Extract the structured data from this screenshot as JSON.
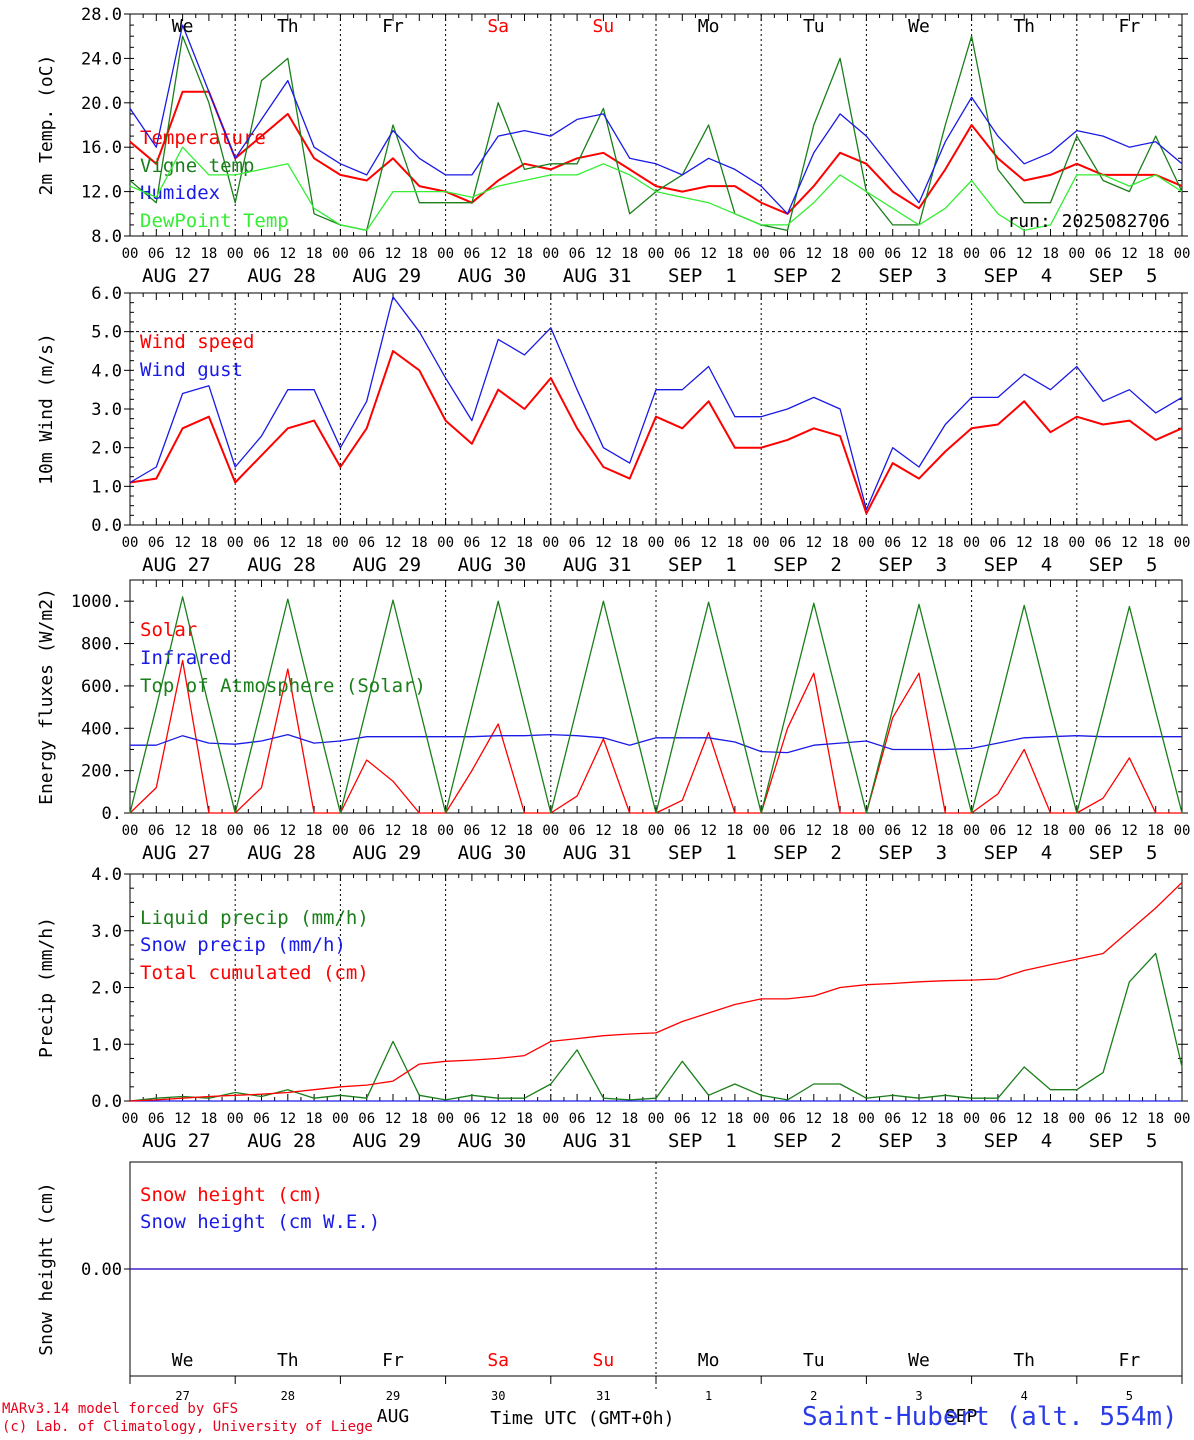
{
  "run_label": "run: 2025082706",
  "hour_labels": [
    "00",
    "06",
    "12",
    "18"
  ],
  "day_dates": [
    "AUG 27",
    "AUG 28",
    "AUG 29",
    "AUG 30",
    "AUG 31",
    "SEP  1",
    "SEP  2",
    "SEP  3",
    "SEP  4",
    "SEP  5"
  ],
  "weekdays": [
    {
      "name": "We",
      "color": "#000000"
    },
    {
      "name": "Th",
      "color": "#000000"
    },
    {
      "name": "Fr",
      "color": "#000000"
    },
    {
      "name": "Sa",
      "color": "#ff0000"
    },
    {
      "name": "Su",
      "color": "#ff0000"
    },
    {
      "name": "Mo",
      "color": "#000000"
    },
    {
      "name": "Tu",
      "color": "#000000"
    },
    {
      "name": "We",
      "color": "#000000"
    },
    {
      "name": "Th",
      "color": "#000000"
    },
    {
      "name": "Fr",
      "color": "#000000"
    }
  ],
  "bottom_day_numbers": [
    "27",
    "28",
    "29",
    "30",
    "31",
    "1",
    "2",
    "3",
    "4",
    "5"
  ],
  "bottom_months": [
    "AUG",
    "SEP"
  ],
  "time_axis_label": "Time UTC (GMT+0h)",
  "credits": [
    "MARv3.14 model forced by GFS",
    "(c) Lab. of Climatology, University of Liege"
  ],
  "station": "Saint-Hubert (alt. 554m)",
  "chart_data": [
    {
      "type": "line",
      "ylabel": "2m Temp. (oC)",
      "ylim": [
        8,
        28
      ],
      "yticks": [
        "8.0",
        "12.0",
        "16.0",
        "20.0",
        "24.0",
        "28.0"
      ],
      "x_days": [
        0,
        0.25,
        0.5,
        0.75,
        1,
        1.25,
        1.5,
        1.75,
        2,
        2.25,
        2.5,
        2.75,
        3,
        3.25,
        3.5,
        3.75,
        4,
        4.25,
        4.5,
        4.75,
        5,
        5.25,
        5.5,
        5.75,
        6,
        6.25,
        6.5,
        6.75,
        7,
        7.25,
        7.5,
        7.75,
        8,
        8.25,
        8.5,
        8.75,
        9,
        9.25,
        9.5,
        9.75,
        10
      ],
      "series": [
        {
          "name": "Temperature",
          "color": "#ff0000",
          "values": [
            16.5,
            14.5,
            21,
            21,
            15,
            17,
            19,
            15,
            13.5,
            13,
            15,
            12.5,
            12,
            11,
            13,
            14.5,
            14,
            15,
            15.5,
            14,
            12.5,
            12,
            12.5,
            12.5,
            11,
            10,
            12.5,
            15.5,
            14.5,
            12,
            10.5,
            14,
            18,
            15,
            13,
            13.5,
            14.5,
            13.5,
            13.5,
            13.5,
            12.5
          ]
        },
        {
          "name": "Vigne temp",
          "color": "#1a7f1a",
          "values": [
            13,
            11,
            26,
            20,
            11,
            22,
            24,
            10,
            9,
            8.5,
            18,
            11,
            11,
            11,
            20,
            14,
            14.5,
            14.5,
            19.5,
            10,
            12,
            13.5,
            18,
            10,
            9,
            8.5,
            18,
            24,
            12,
            9,
            9,
            18,
            26,
            14,
            11,
            11,
            17,
            13,
            12,
            17,
            12
          ]
        },
        {
          "name": "Humidex",
          "color": "#1a1ae6",
          "values": [
            19.5,
            16,
            27,
            21,
            15,
            18.5,
            22,
            16,
            14.5,
            13.5,
            17.5,
            15,
            13.5,
            13.5,
            17,
            17.5,
            17,
            18.5,
            19,
            15,
            14.5,
            13.5,
            15,
            14,
            12.5,
            10,
            15.5,
            19,
            17,
            14,
            11,
            16.5,
            20.5,
            17,
            14.5,
            15.5,
            17.5,
            17,
            16,
            16.5,
            14.5
          ]
        },
        {
          "name": "DewPoint Temp",
          "color": "#33ee33",
          "values": [
            12.5,
            11.5,
            16,
            13.5,
            13.5,
            14,
            14.5,
            10.5,
            9,
            8.5,
            12,
            12,
            12,
            11.5,
            12.5,
            13,
            13.5,
            13.5,
            14.5,
            13.5,
            12,
            11.5,
            11,
            10,
            9,
            9,
            11,
            13.5,
            12,
            10.5,
            9,
            10.5,
            13,
            10,
            8.5,
            9,
            13.5,
            13.5,
            12.5,
            13.5,
            12
          ]
        }
      ]
    },
    {
      "type": "line",
      "ylabel": "10m Wind (m/s)",
      "ylim": [
        0,
        6
      ],
      "yticks": [
        "0.0",
        "1.0",
        "2.0",
        "3.0",
        "4.0",
        "5.0",
        "6.0"
      ],
      "x_days": [
        0,
        0.25,
        0.5,
        0.75,
        1,
        1.25,
        1.5,
        1.75,
        2,
        2.25,
        2.5,
        2.75,
        3,
        3.25,
        3.5,
        3.75,
        4,
        4.25,
        4.5,
        4.75,
        5,
        5.25,
        5.5,
        5.75,
        6,
        6.25,
        6.5,
        6.75,
        7,
        7.25,
        7.5,
        7.75,
        8,
        8.25,
        8.5,
        8.75,
        9,
        9.25,
        9.5,
        9.75,
        10
      ],
      "series": [
        {
          "name": "Wind speed",
          "color": "#ff0000",
          "values": [
            1.1,
            1.2,
            2.5,
            2.8,
            1.1,
            1.8,
            2.5,
            2.7,
            1.5,
            2.5,
            4.5,
            4.0,
            2.7,
            2.1,
            3.5,
            3.0,
            3.8,
            2.5,
            1.5,
            1.2,
            2.8,
            2.5,
            3.2,
            2.0,
            2.0,
            2.2,
            2.5,
            2.3,
            0.3,
            1.6,
            1.2,
            1.9,
            2.5,
            2.6,
            3.2,
            2.4,
            2.8,
            2.6,
            2.7,
            2.2,
            2.5
          ]
        },
        {
          "name": "Wind gust",
          "color": "#1a1ae6",
          "values": [
            1.1,
            1.5,
            3.4,
            3.6,
            1.5,
            2.3,
            3.5,
            3.5,
            2.0,
            3.2,
            5.9,
            5.0,
            3.8,
            2.7,
            4.8,
            4.4,
            5.1,
            3.5,
            2.0,
            1.6,
            3.5,
            3.5,
            4.1,
            2.8,
            2.8,
            3.0,
            3.3,
            3.0,
            0.4,
            2.0,
            1.5,
            2.6,
            3.3,
            3.3,
            3.9,
            3.5,
            4.1,
            3.2,
            3.5,
            2.9,
            3.3
          ]
        }
      ]
    },
    {
      "type": "line",
      "ylabel": "Energy fluxes (W/m2)",
      "ylim": [
        0,
        1100
      ],
      "yticks": [
        "0.",
        "200.",
        "400.",
        "600.",
        "800.",
        "1000."
      ],
      "x_days": [
        0,
        0.25,
        0.5,
        0.75,
        1,
        1.25,
        1.5,
        1.75,
        2,
        2.25,
        2.5,
        2.75,
        3,
        3.25,
        3.5,
        3.75,
        4,
        4.25,
        4.5,
        4.75,
        5,
        5.25,
        5.5,
        5.75,
        6,
        6.25,
        6.5,
        6.75,
        7,
        7.25,
        7.5,
        7.75,
        8,
        8.25,
        8.5,
        8.75,
        9,
        9.25,
        9.5,
        9.75,
        10
      ],
      "series": [
        {
          "name": "Solar",
          "color": "#ff0000",
          "values": [
            0,
            120,
            720,
            0,
            0,
            120,
            680,
            0,
            0,
            250,
            150,
            0,
            0,
            200,
            420,
            0,
            0,
            80,
            350,
            0,
            0,
            60,
            380,
            0,
            0,
            400,
            660,
            0,
            0,
            450,
            660,
            0,
            0,
            90,
            300,
            0,
            0,
            70,
            260,
            0,
            0
          ]
        },
        {
          "name": "Infrared",
          "color": "#1a1ae6",
          "values": [
            320,
            320,
            365,
            330,
            325,
            340,
            370,
            330,
            340,
            360,
            360,
            360,
            360,
            360,
            365,
            365,
            370,
            365,
            355,
            320,
            355,
            355,
            355,
            335,
            290,
            285,
            320,
            330,
            340,
            300,
            300,
            300,
            305,
            330,
            355,
            360,
            365,
            360,
            360,
            360,
            360
          ]
        },
        {
          "name": "Top of Atmosphere (Solar)",
          "color": "#1a7f1a",
          "values": [
            0,
            500,
            1020,
            500,
            0,
            500,
            1010,
            500,
            0,
            500,
            1005,
            500,
            0,
            500,
            1000,
            500,
            0,
            500,
            1000,
            500,
            0,
            500,
            995,
            500,
            0,
            495,
            990,
            495,
            0,
            490,
            985,
            490,
            0,
            485,
            980,
            485,
            0,
            480,
            975,
            480,
            0
          ]
        }
      ]
    },
    {
      "type": "line",
      "ylabel": "Precip (mm/h)",
      "ylim": [
        0,
        4
      ],
      "yticks": [
        "0.0",
        "1.0",
        "2.0",
        "3.0",
        "4.0"
      ],
      "x_days": [
        0,
        0.25,
        0.5,
        0.75,
        1,
        1.25,
        1.5,
        1.75,
        2,
        2.25,
        2.5,
        2.75,
        3,
        3.25,
        3.5,
        3.75,
        4,
        4.25,
        4.5,
        4.75,
        5,
        5.25,
        5.5,
        5.75,
        6,
        6.25,
        6.5,
        6.75,
        7,
        7.25,
        7.5,
        7.75,
        8,
        8.25,
        8.5,
        8.75,
        9,
        9.25,
        9.5,
        9.75,
        10
      ],
      "series": [
        {
          "name": "Liquid precip (mm/h)",
          "color": "#1a7f1a",
          "values": [
            0,
            0.05,
            0.08,
            0.05,
            0.15,
            0.08,
            0.2,
            0.05,
            0.1,
            0.05,
            1.05,
            0.1,
            0.02,
            0.1,
            0.05,
            0.05,
            0.3,
            0.9,
            0.05,
            0.02,
            0.05,
            0.7,
            0.1,
            0.3,
            0.1,
            0.02,
            0.3,
            0.3,
            0.05,
            0.1,
            0.05,
            0.1,
            0.05,
            0.05,
            0.6,
            0.2,
            0.2,
            0.5,
            2.1,
            2.6,
            0.6
          ]
        },
        {
          "name": "Snow precip (mm/h)",
          "color": "#1a1ae6",
          "values": [
            0,
            0,
            0,
            0,
            0,
            0,
            0,
            0,
            0,
            0,
            0,
            0,
            0,
            0,
            0,
            0,
            0,
            0,
            0,
            0,
            0,
            0,
            0,
            0,
            0,
            0,
            0,
            0,
            0,
            0,
            0,
            0,
            0,
            0,
            0,
            0,
            0,
            0,
            0,
            0,
            0
          ]
        },
        {
          "name": "Total cumulated (cm)",
          "color": "#ff0000",
          "values": [
            0,
            0.02,
            0.05,
            0.08,
            0.1,
            0.12,
            0.15,
            0.2,
            0.25,
            0.28,
            0.35,
            0.65,
            0.7,
            0.72,
            0.75,
            0.8,
            1.05,
            1.1,
            1.15,
            1.18,
            1.2,
            1.4,
            1.55,
            1.7,
            1.8,
            1.8,
            1.85,
            2.0,
            2.05,
            2.07,
            2.1,
            2.12,
            2.13,
            2.15,
            2.3,
            2.4,
            2.5,
            2.6,
            3.0,
            3.4,
            3.85
          ]
        }
      ]
    },
    {
      "type": "line",
      "ylabel": "Snow height (cm)",
      "ylim": [
        -1,
        1
      ],
      "yticks": [
        "0.00"
      ],
      "x_days": [
        0,
        10
      ],
      "series": [
        {
          "name": "Snow height (cm)",
          "color": "#ff0000",
          "values": [
            0,
            0
          ]
        },
        {
          "name": "Snow height (cm W.E.)",
          "color": "#1a1ae6",
          "values": [
            0,
            0
          ]
        }
      ]
    }
  ]
}
